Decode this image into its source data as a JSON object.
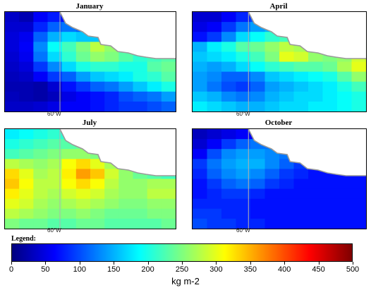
{
  "panels": [
    {
      "id": "january",
      "title": "January",
      "lon_label": "60°W",
      "grid": [
        [
          35,
          25,
          60,
          75,
          70,
          60,
          55,
          50,
          -1,
          -1,
          -1,
          -1
        ],
        [
          40,
          40,
          80,
          110,
          120,
          110,
          100,
          95,
          90,
          -1,
          -1,
          -1
        ],
        [
          45,
          55,
          110,
          150,
          170,
          160,
          160,
          155,
          140,
          130,
          -1,
          -1
        ],
        [
          45,
          60,
          130,
          190,
          220,
          250,
          280,
          260,
          230,
          210,
          200,
          190
        ],
        [
          40,
          55,
          120,
          170,
          210,
          240,
          260,
          250,
          230,
          210,
          220,
          230
        ],
        [
          35,
          45,
          90,
          130,
          170,
          200,
          210,
          210,
          200,
          200,
          230,
          240
        ],
        [
          30,
          35,
          60,
          90,
          110,
          140,
          160,
          170,
          180,
          200,
          210,
          230
        ],
        [
          25,
          25,
          20,
          40,
          70,
          90,
          110,
          120,
          140,
          160,
          180,
          200
        ],
        [
          30,
          25,
          20,
          30,
          50,
          60,
          70,
          80,
          100,
          110,
          120,
          140
        ],
        [
          35,
          35,
          40,
          50,
          60,
          60,
          70,
          80,
          90,
          90,
          100,
          110
        ]
      ]
    },
    {
      "id": "april",
      "title": "April",
      "lon_label": "60°W",
      "grid": [
        [
          40,
          40,
          60,
          80,
          100,
          110,
          110,
          -1,
          -1,
          -1,
          -1,
          -1
        ],
        [
          50,
          60,
          90,
          120,
          140,
          150,
          150,
          140,
          130,
          -1,
          -1,
          -1
        ],
        [
          70,
          90,
          130,
          170,
          190,
          210,
          220,
          210,
          200,
          190,
          -1,
          -1
        ],
        [
          150,
          180,
          200,
          230,
          240,
          260,
          280,
          270,
          250,
          230,
          220,
          230
        ],
        [
          160,
          170,
          180,
          200,
          220,
          250,
          300,
          290,
          260,
          250,
          260,
          290
        ],
        [
          150,
          140,
          150,
          170,
          190,
          210,
          220,
          230,
          230,
          240,
          270,
          300
        ],
        [
          140,
          130,
          110,
          110,
          130,
          160,
          170,
          180,
          190,
          200,
          230,
          260
        ],
        [
          140,
          120,
          100,
          90,
          110,
          140,
          150,
          160,
          170,
          180,
          200,
          220
        ],
        [
          160,
          150,
          130,
          120,
          130,
          150,
          160,
          170,
          170,
          180,
          190,
          200
        ],
        [
          180,
          170,
          160,
          150,
          150,
          160,
          170,
          170,
          180,
          180,
          190,
          200
        ]
      ]
    },
    {
      "id": "july",
      "title": "July",
      "lon_label": "60°W",
      "grid": [
        [
          180,
          190,
          200,
          210,
          210,
          220,
          210,
          -1,
          -1,
          -1,
          -1,
          -1
        ],
        [
          200,
          210,
          220,
          230,
          230,
          240,
          230,
          220,
          210,
          -1,
          -1,
          -1
        ],
        [
          220,
          230,
          240,
          250,
          260,
          260,
          250,
          240,
          230,
          220,
          -1,
          -1
        ],
        [
          280,
          270,
          260,
          270,
          310,
          330,
          300,
          270,
          250,
          230,
          220,
          210
        ],
        [
          330,
          300,
          270,
          280,
          320,
          360,
          340,
          290,
          260,
          240,
          230,
          220
        ],
        [
          340,
          310,
          280,
          280,
          310,
          330,
          310,
          280,
          260,
          260,
          270,
          270
        ],
        [
          320,
          300,
          280,
          270,
          290,
          300,
          290,
          270,
          260,
          260,
          280,
          280
        ],
        [
          300,
          290,
          270,
          260,
          270,
          280,
          270,
          260,
          250,
          250,
          260,
          260
        ],
        [
          280,
          270,
          260,
          250,
          250,
          260,
          250,
          240,
          240,
          240,
          250,
          250
        ],
        [
          250,
          240,
          240,
          230,
          230,
          240,
          240,
          230,
          230,
          230,
          230,
          240
        ]
      ]
    },
    {
      "id": "october",
      "title": "October",
      "lon_label": "60°W",
      "grid": [
        [
          30,
          40,
          50,
          60,
          60,
          70,
          -1,
          -1,
          -1,
          -1,
          -1,
          -1
        ],
        [
          40,
          60,
          90,
          110,
          120,
          120,
          110,
          100,
          90,
          -1,
          -1,
          -1
        ],
        [
          60,
          100,
          130,
          140,
          140,
          130,
          120,
          100,
          80,
          70,
          -1,
          -1
        ],
        [
          90,
          120,
          140,
          150,
          150,
          130,
          110,
          90,
          80,
          70,
          70,
          70
        ],
        [
          80,
          110,
          130,
          140,
          130,
          110,
          90,
          80,
          70,
          70,
          70,
          70
        ],
        [
          70,
          90,
          110,
          120,
          110,
          90,
          80,
          70,
          70,
          70,
          70,
          70
        ],
        [
          70,
          80,
          90,
          90,
          80,
          70,
          70,
          70,
          70,
          70,
          70,
          70
        ],
        [
          80,
          80,
          80,
          80,
          70,
          70,
          70,
          70,
          70,
          70,
          70,
          70
        ],
        [
          90,
          90,
          80,
          80,
          70,
          70,
          70,
          70,
          70,
          70,
          70,
          70
        ],
        [
          100,
          90,
          90,
          80,
          80,
          70,
          70,
          70,
          70,
          70,
          70,
          70
        ]
      ]
    }
  ],
  "legend": {
    "title": "Legend:",
    "min": 0,
    "max": 500,
    "ticks": [
      "0",
      "50",
      "100",
      "150",
      "200",
      "250",
      "300",
      "350",
      "400",
      "450",
      "500"
    ],
    "unit": "kg m-2",
    "colormap": [
      "#00007f",
      "#0000ff",
      "#007fff",
      "#00ffff",
      "#7fff7f",
      "#ffff00",
      "#ff7f00",
      "#ff0000",
      "#7f0000"
    ]
  },
  "map_colors": {
    "land": "#ffffff",
    "coastline": "#9a9a9a",
    "meridian": "#b0b0b0"
  }
}
